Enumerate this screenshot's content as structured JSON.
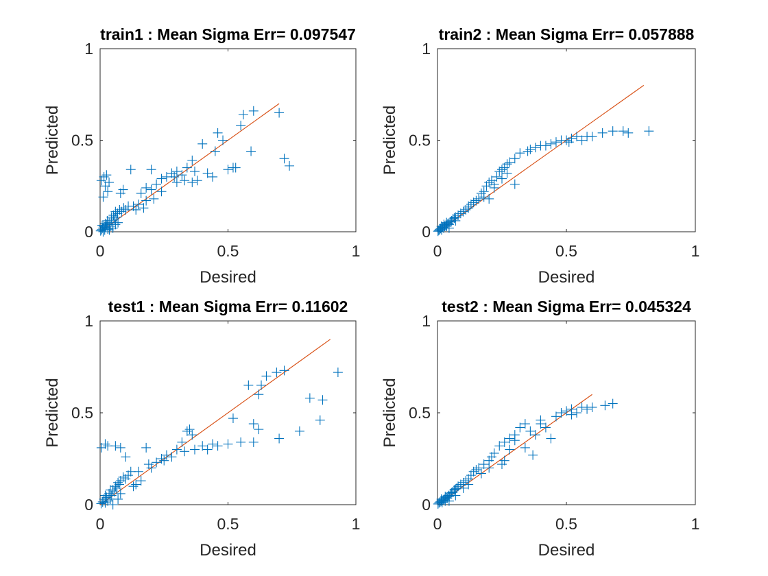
{
  "figure": {
    "colors": {
      "marker": "#0072BD",
      "line": "#D95319",
      "axes": "#262626",
      "title": "#000000"
    }
  },
  "chart_data": [
    {
      "type": "scatter",
      "title": "train1 :  Mean Sigma Err= 0.097547",
      "xlabel": "Desired",
      "ylabel": "Predicted",
      "xlim": [
        0,
        1
      ],
      "ylim": [
        0,
        1
      ],
      "xticks": [
        "0",
        "0.5",
        "1"
      ],
      "yticks": [
        "0",
        "0.5",
        "1"
      ],
      "grid": false,
      "reference_line": [
        [
          0,
          0
        ],
        [
          0.7,
          0.7
        ]
      ],
      "points": [
        [
          0.002,
          0.005
        ],
        [
          0.006,
          0.012
        ],
        [
          0.01,
          0.02
        ],
        [
          0.014,
          0.03
        ],
        [
          0.018,
          0.01
        ],
        [
          0.022,
          0.025
        ],
        [
          0.026,
          0.04
        ],
        [
          0.03,
          0.015
        ],
        [
          0.035,
          0.05
        ],
        [
          0.04,
          0.03
        ],
        [
          0.045,
          0.06
        ],
        [
          0.05,
          0.02
        ],
        [
          0.055,
          0.07
        ],
        [
          0.06,
          0.04
        ],
        [
          0.065,
          0.08
        ],
        [
          0.07,
          0.05
        ],
        [
          0.008,
          0.035
        ],
        [
          0.012,
          0.0
        ],
        [
          0.02,
          0.045
        ],
        [
          0.028,
          0.06
        ],
        [
          0.036,
          0.01
        ],
        [
          0.044,
          0.08
        ],
        [
          0.052,
          0.09
        ],
        [
          0.06,
          0.11
        ],
        [
          0.068,
          0.1
        ],
        [
          0.076,
          0.12
        ],
        [
          0.084,
          0.11
        ],
        [
          0.092,
          0.13
        ],
        [
          0.1,
          0.12
        ],
        [
          0.11,
          0.14
        ],
        [
          0.005,
          0.28
        ],
        [
          0.015,
          0.3
        ],
        [
          0.025,
          0.31
        ],
        [
          0.02,
          0.25
        ],
        [
          0.012,
          0.19
        ],
        [
          0.03,
          0.22
        ],
        [
          0.035,
          0.27
        ],
        [
          0.08,
          0.21
        ],
        [
          0.09,
          0.23
        ],
        [
          0.12,
          0.34
        ],
        [
          0.2,
          0.34
        ],
        [
          0.15,
          0.15
        ],
        [
          0.16,
          0.21
        ],
        [
          0.18,
          0.24
        ],
        [
          0.2,
          0.23
        ],
        [
          0.22,
          0.26
        ],
        [
          0.24,
          0.29
        ],
        [
          0.26,
          0.3
        ],
        [
          0.28,
          0.32
        ],
        [
          0.3,
          0.33
        ],
        [
          0.32,
          0.31
        ],
        [
          0.34,
          0.35
        ],
        [
          0.36,
          0.39
        ],
        [
          0.38,
          0.28
        ],
        [
          0.4,
          0.48
        ],
        [
          0.42,
          0.32
        ],
        [
          0.45,
          0.44
        ],
        [
          0.46,
          0.54
        ],
        [
          0.48,
          0.5
        ],
        [
          0.5,
          0.34
        ],
        [
          0.52,
          0.35
        ],
        [
          0.55,
          0.58
        ],
        [
          0.56,
          0.64
        ],
        [
          0.6,
          0.66
        ],
        [
          0.59,
          0.44
        ],
        [
          0.7,
          0.65
        ],
        [
          0.72,
          0.4
        ],
        [
          0.74,
          0.36
        ],
        [
          0.36,
          0.27
        ],
        [
          0.33,
          0.28
        ],
        [
          0.24,
          0.22
        ],
        [
          0.21,
          0.18
        ],
        [
          0.18,
          0.17
        ],
        [
          0.13,
          0.14
        ],
        [
          0.14,
          0.12
        ],
        [
          0.17,
          0.13
        ],
        [
          0.3,
          0.27
        ],
        [
          0.29,
          0.3
        ],
        [
          0.37,
          0.33
        ],
        [
          0.44,
          0.3
        ],
        [
          0.53,
          0.35
        ]
      ]
    },
    {
      "type": "scatter",
      "title": "train2 :  Mean Sigma Err= 0.057888",
      "xlabel": "Desired",
      "ylabel": "Predicted",
      "xlim": [
        0,
        1
      ],
      "ylim": [
        0,
        1
      ],
      "xticks": [
        "0",
        "0.5",
        "1"
      ],
      "yticks": [
        "0",
        "0.5",
        "1"
      ],
      "grid": false,
      "reference_line": [
        [
          0,
          0
        ],
        [
          0.8,
          0.8
        ]
      ],
      "points": [
        [
          0.002,
          0.003
        ],
        [
          0.005,
          0.008
        ],
        [
          0.008,
          0.012
        ],
        [
          0.012,
          0.018
        ],
        [
          0.016,
          0.01
        ],
        [
          0.02,
          0.025
        ],
        [
          0.024,
          0.02
        ],
        [
          0.028,
          0.03
        ],
        [
          0.032,
          0.035
        ],
        [
          0.036,
          0.03
        ],
        [
          0.04,
          0.045
        ],
        [
          0.045,
          0.04
        ],
        [
          0.05,
          0.055
        ],
        [
          0.055,
          0.06
        ],
        [
          0.06,
          0.07
        ],
        [
          0.065,
          0.075
        ],
        [
          0.07,
          0.08
        ],
        [
          0.08,
          0.09
        ],
        [
          0.09,
          0.1
        ],
        [
          0.1,
          0.11
        ],
        [
          0.11,
          0.12
        ],
        [
          0.12,
          0.14
        ],
        [
          0.13,
          0.15
        ],
        [
          0.14,
          0.16
        ],
        [
          0.15,
          0.17
        ],
        [
          0.16,
          0.18
        ],
        [
          0.18,
          0.19
        ],
        [
          0.2,
          0.18
        ],
        [
          0.17,
          0.21
        ],
        [
          0.19,
          0.25
        ],
        [
          0.2,
          0.27
        ],
        [
          0.21,
          0.28
        ],
        [
          0.23,
          0.3
        ],
        [
          0.24,
          0.33
        ],
        [
          0.25,
          0.34
        ],
        [
          0.26,
          0.35
        ],
        [
          0.27,
          0.37
        ],
        [
          0.28,
          0.38
        ],
        [
          0.3,
          0.4
        ],
        [
          0.32,
          0.43
        ],
        [
          0.36,
          0.45
        ],
        [
          0.38,
          0.46
        ],
        [
          0.42,
          0.47
        ],
        [
          0.46,
          0.49
        ],
        [
          0.5,
          0.5
        ],
        [
          0.52,
          0.51
        ],
        [
          0.54,
          0.52
        ],
        [
          0.56,
          0.5
        ],
        [
          0.64,
          0.54
        ],
        [
          0.68,
          0.55
        ],
        [
          0.72,
          0.55
        ],
        [
          0.74,
          0.54
        ],
        [
          0.82,
          0.55
        ],
        [
          0.3,
          0.26
        ],
        [
          0.22,
          0.24
        ],
        [
          0.25,
          0.29
        ],
        [
          0.27,
          0.32
        ],
        [
          0.35,
          0.44
        ],
        [
          0.4,
          0.47
        ],
        [
          0.44,
          0.48
        ],
        [
          0.48,
          0.5
        ],
        [
          0.51,
          0.49
        ],
        [
          0.58,
          0.52
        ],
        [
          0.6,
          0.52
        ],
        [
          0.015,
          0.03
        ],
        [
          0.025,
          0.04
        ],
        [
          0.035,
          0.05
        ],
        [
          0.045,
          0.02
        ],
        [
          0.07,
          0.06
        ],
        [
          0.12,
          0.13
        ],
        [
          0.18,
          0.22
        ],
        [
          0.22,
          0.26
        ]
      ]
    },
    {
      "type": "scatter",
      "title": "test1 :  Mean Sigma Err= 0.11602",
      "xlabel": "Desired",
      "ylabel": "Predicted",
      "xlim": [
        0,
        1
      ],
      "ylim": [
        0,
        1
      ],
      "xticks": [
        "0",
        "0.5",
        "1"
      ],
      "yticks": [
        "0",
        "0.5",
        "1"
      ],
      "grid": false,
      "reference_line": [
        [
          0,
          0
        ],
        [
          0.9,
          0.9
        ]
      ],
      "points": [
        [
          0.004,
          0.006
        ],
        [
          0.01,
          0.015
        ],
        [
          0.015,
          0.03
        ],
        [
          0.02,
          0.01
        ],
        [
          0.025,
          0.04
        ],
        [
          0.03,
          0.02
        ],
        [
          0.035,
          0.06
        ],
        [
          0.04,
          0.03
        ],
        [
          0.045,
          0.05
        ],
        [
          0.05,
          0.08
        ],
        [
          0.055,
          0.07
        ],
        [
          0.06,
          0.1
        ],
        [
          0.065,
          0.09
        ],
        [
          0.07,
          0.12
        ],
        [
          0.075,
          0.11
        ],
        [
          0.08,
          0.13
        ],
        [
          0.09,
          0.15
        ],
        [
          0.1,
          0.14
        ],
        [
          0.11,
          0.16
        ],
        [
          0.12,
          0.18
        ],
        [
          0.005,
          0.31
        ],
        [
          0.02,
          0.33
        ],
        [
          0.03,
          0.32
        ],
        [
          0.06,
          0.32
        ],
        [
          0.08,
          0.31
        ],
        [
          0.1,
          0.26
        ],
        [
          0.15,
          0.18
        ],
        [
          0.18,
          0.31
        ],
        [
          0.2,
          0.2
        ],
        [
          0.22,
          0.23
        ],
        [
          0.24,
          0.25
        ],
        [
          0.26,
          0.27
        ],
        [
          0.28,
          0.26
        ],
        [
          0.3,
          0.3
        ],
        [
          0.32,
          0.34
        ],
        [
          0.34,
          0.4
        ],
        [
          0.35,
          0.41
        ],
        [
          0.36,
          0.38
        ],
        [
          0.4,
          0.32
        ],
        [
          0.42,
          0.3
        ],
        [
          0.44,
          0.33
        ],
        [
          0.46,
          0.32
        ],
        [
          0.5,
          0.33
        ],
        [
          0.52,
          0.47
        ],
        [
          0.55,
          0.34
        ],
        [
          0.58,
          0.65
        ],
        [
          0.6,
          0.34
        ],
        [
          0.6,
          0.44
        ],
        [
          0.62,
          0.6
        ],
        [
          0.63,
          0.65
        ],
        [
          0.65,
          0.7
        ],
        [
          0.69,
          0.72
        ],
        [
          0.7,
          0.36
        ],
        [
          0.72,
          0.73
        ],
        [
          0.78,
          0.4
        ],
        [
          0.82,
          0.58
        ],
        [
          0.86,
          0.46
        ],
        [
          0.87,
          0.57
        ],
        [
          0.93,
          0.72
        ],
        [
          0.62,
          0.41
        ],
        [
          0.37,
          0.3
        ],
        [
          0.33,
          0.29
        ],
        [
          0.25,
          0.24
        ],
        [
          0.19,
          0.22
        ],
        [
          0.16,
          0.13
        ],
        [
          0.14,
          0.11
        ],
        [
          0.13,
          0.1
        ],
        [
          0.08,
          0.06
        ],
        [
          0.02,
          0.05
        ],
        [
          0.04,
          0.08
        ],
        [
          0.05,
          0.0
        ],
        [
          0.07,
          0.03
        ]
      ]
    },
    {
      "type": "scatter",
      "title": "test2 :  Mean Sigma Err= 0.045324",
      "xlabel": "Desired",
      "ylabel": "Predicted",
      "xlim": [
        0,
        1
      ],
      "ylim": [
        0,
        1
      ],
      "xticks": [
        "0",
        "0.5",
        "1"
      ],
      "yticks": [
        "0",
        "0.5",
        "1"
      ],
      "grid": false,
      "reference_line": [
        [
          0,
          0
        ],
        [
          0.6,
          0.6
        ]
      ],
      "points": [
        [
          0.002,
          0.004
        ],
        [
          0.006,
          0.01
        ],
        [
          0.01,
          0.015
        ],
        [
          0.014,
          0.02
        ],
        [
          0.018,
          0.012
        ],
        [
          0.022,
          0.025
        ],
        [
          0.026,
          0.03
        ],
        [
          0.03,
          0.02
        ],
        [
          0.034,
          0.04
        ],
        [
          0.038,
          0.035
        ],
        [
          0.042,
          0.05
        ],
        [
          0.046,
          0.045
        ],
        [
          0.05,
          0.06
        ],
        [
          0.055,
          0.065
        ],
        [
          0.06,
          0.07
        ],
        [
          0.065,
          0.08
        ],
        [
          0.07,
          0.085
        ],
        [
          0.075,
          0.09
        ],
        [
          0.08,
          0.1
        ],
        [
          0.09,
          0.11
        ],
        [
          0.1,
          0.12
        ],
        [
          0.11,
          0.13
        ],
        [
          0.12,
          0.14
        ],
        [
          0.13,
          0.16
        ],
        [
          0.14,
          0.18
        ],
        [
          0.15,
          0.19
        ],
        [
          0.16,
          0.2
        ],
        [
          0.18,
          0.22
        ],
        [
          0.2,
          0.24
        ],
        [
          0.22,
          0.28
        ],
        [
          0.24,
          0.32
        ],
        [
          0.26,
          0.34
        ],
        [
          0.28,
          0.36
        ],
        [
          0.3,
          0.38
        ],
        [
          0.32,
          0.42
        ],
        [
          0.34,
          0.44
        ],
        [
          0.36,
          0.4
        ],
        [
          0.38,
          0.38
        ],
        [
          0.4,
          0.44
        ],
        [
          0.42,
          0.42
        ],
        [
          0.44,
          0.36
        ],
        [
          0.46,
          0.48
        ],
        [
          0.48,
          0.5
        ],
        [
          0.5,
          0.51
        ],
        [
          0.52,
          0.52
        ],
        [
          0.54,
          0.5
        ],
        [
          0.56,
          0.53
        ],
        [
          0.58,
          0.52
        ],
        [
          0.6,
          0.53
        ],
        [
          0.65,
          0.54
        ],
        [
          0.68,
          0.55
        ],
        [
          0.37,
          0.27
        ],
        [
          0.34,
          0.31
        ],
        [
          0.26,
          0.24
        ],
        [
          0.25,
          0.22
        ],
        [
          0.2,
          0.2
        ],
        [
          0.17,
          0.17
        ],
        [
          0.21,
          0.26
        ],
        [
          0.28,
          0.3
        ],
        [
          0.3,
          0.35
        ],
        [
          0.4,
          0.46
        ],
        [
          0.52,
          0.49
        ],
        [
          0.015,
          0.03
        ],
        [
          0.03,
          0.045
        ],
        [
          0.045,
          0.02
        ],
        [
          0.07,
          0.05
        ],
        [
          0.1,
          0.09
        ],
        [
          0.12,
          0.11
        ]
      ]
    }
  ]
}
